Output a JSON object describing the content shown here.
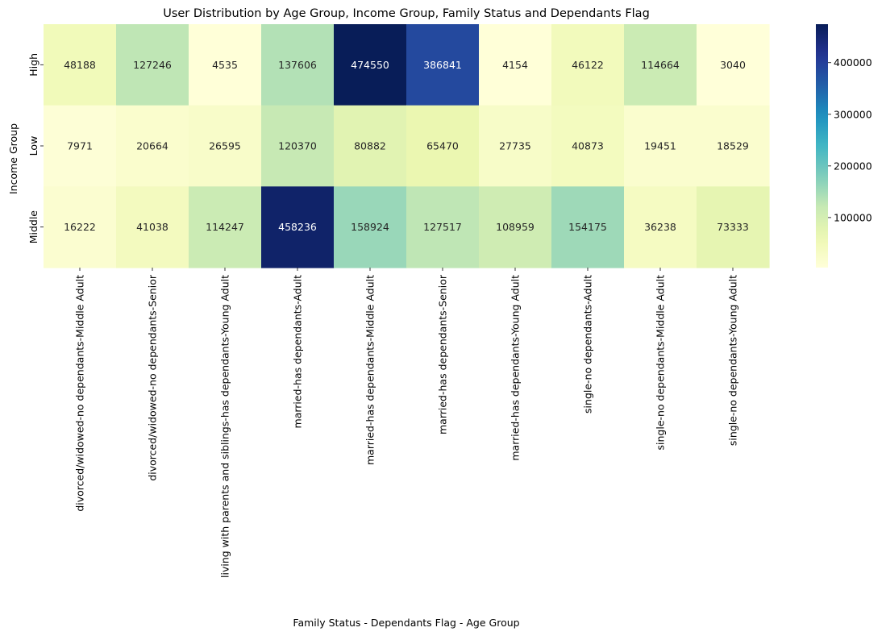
{
  "chart_data": {
    "type": "heatmap",
    "title": "User Distribution by Age Group, Income Group, Family Status and Dependants Flag",
    "xlabel": "Family Status - Dependants Flag - Age Group",
    "ylabel": "Income Group",
    "x_categories": [
      "divorced/widowed-no dependants-Middle Adult",
      "divorced/widowed-no dependants-Senior",
      "living with parents and siblings-has dependants-Young Adult",
      "married-has dependants-Adult",
      "married-has dependants-Middle Adult",
      "married-has dependants-Senior",
      "married-has dependants-Young Adult",
      "single-no dependants-Adult",
      "single-no dependants-Middle Adult",
      "single-no dependants-Young Adult"
    ],
    "y_categories": [
      "High",
      "Low",
      "Middle"
    ],
    "values": [
      [
        48188,
        127246,
        4535,
        137606,
        474550,
        386841,
        4154,
        46122,
        114664,
        3040
      ],
      [
        7971,
        20664,
        26595,
        120370,
        80882,
        65470,
        27735,
        40873,
        19451,
        18529
      ],
      [
        16222,
        41038,
        114247,
        458236,
        158924,
        127517,
        108959,
        154175,
        36238,
        73333
      ]
    ],
    "colormap": "YlGnBu",
    "colorbar": {
      "ticks": [
        100000,
        200000,
        300000,
        400000
      ],
      "tick_labels": [
        "100000",
        "200000",
        "300000",
        "400000"
      ]
    }
  }
}
